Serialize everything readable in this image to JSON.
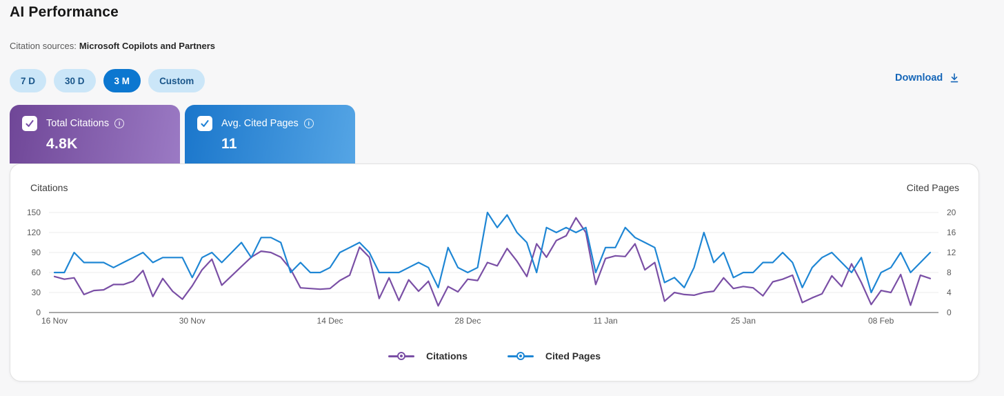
{
  "page": {
    "title": "AI Performance",
    "sources_label": "Citation sources:",
    "sources_value": "Microsoft Copilots and Partners"
  },
  "time_filters": [
    {
      "label": "7 D",
      "active": false
    },
    {
      "label": "30 D",
      "active": false
    },
    {
      "label": "3 M",
      "active": true
    },
    {
      "label": "Custom",
      "active": false
    }
  ],
  "download": {
    "label": "Download"
  },
  "metric_cards": [
    {
      "label": "Total Citations",
      "value": "4.8K",
      "checked": true,
      "gradient_from": "#6f4697",
      "gradient_to": "#9b7ac4",
      "check_color": "#7a50a8"
    },
    {
      "label": "Avg. Cited Pages",
      "value": "11",
      "checked": true,
      "gradient_from": "#1a76cb",
      "gradient_to": "#55a5e5",
      "check_color": "#1f82d6"
    }
  ],
  "colors": {
    "accent_blue": "#0c77d0",
    "link_blue": "#1566b8",
    "grid": "#eeeeee",
    "axis_line": "#737373",
    "tick_text": "#595959"
  },
  "chart_data": {
    "type": "line",
    "interval": "daily",
    "num_points": 90,
    "x_start": "16 Nov",
    "x_end": "13 Feb",
    "x_tick_labels": [
      "16 Nov",
      "30 Nov",
      "14 Dec",
      "28 Dec",
      "11 Jan",
      "25 Jan",
      "08 Feb"
    ],
    "x_tick_days": [
      0,
      14,
      28,
      42,
      56,
      70,
      84
    ],
    "left_axis": {
      "title": "Citations",
      "range": [
        0,
        150
      ],
      "ticks": [
        150,
        120,
        90,
        60,
        30,
        0
      ]
    },
    "right_axis": {
      "title": "Cited Pages",
      "range": [
        0,
        20
      ],
      "ticks": [
        20,
        16,
        12,
        8,
        4,
        0
      ]
    },
    "grid": true,
    "legend_position": "bottom",
    "series": [
      {
        "name": "Citations",
        "axis": "left",
        "color": "#7A4FA5",
        "values": [
          54,
          50,
          52,
          27,
          33,
          34,
          42,
          42,
          47,
          63,
          24,
          51,
          32,
          20,
          40,
          64,
          80,
          41,
          55,
          69,
          83,
          92,
          90,
          83,
          65,
          37,
          36,
          35,
          36,
          48,
          56,
          98,
          83,
          21,
          52,
          18,
          49,
          32,
          47,
          10,
          39,
          31,
          50,
          48,
          75,
          70,
          96,
          77,
          54,
          103,
          83,
          108,
          115,
          142,
          120,
          42,
          81,
          85,
          84,
          103,
          64,
          75,
          17,
          30,
          27,
          26,
          30,
          32,
          52,
          36,
          39,
          37,
          25,
          46,
          50,
          56,
          15,
          22,
          28,
          55,
          39,
          73,
          45,
          12,
          33,
          30,
          57,
          11,
          56,
          51
        ]
      },
      {
        "name": "Cited Pages",
        "axis": "right",
        "color": "#1E86D4",
        "values": [
          8,
          8,
          12,
          10,
          10,
          10,
          9,
          10,
          11,
          12,
          10,
          11,
          11,
          11,
          7,
          11,
          12,
          10,
          12,
          14,
          11,
          15,
          15,
          14,
          8,
          10,
          8,
          8,
          9,
          12,
          13,
          14,
          12,
          8,
          8,
          8,
          9,
          10,
          9,
          5,
          13,
          9,
          8,
          9,
          20,
          17,
          19.5,
          16,
          14,
          8,
          17,
          16,
          17,
          16,
          17,
          8,
          13,
          13,
          17,
          15,
          14,
          13,
          6,
          7,
          5,
          9,
          16,
          10,
          12,
          7,
          8,
          8,
          10,
          10,
          12,
          10,
          5,
          9,
          11,
          12,
          10,
          8,
          11,
          4,
          8,
          9,
          12,
          8,
          10,
          12
        ]
      }
    ]
  }
}
